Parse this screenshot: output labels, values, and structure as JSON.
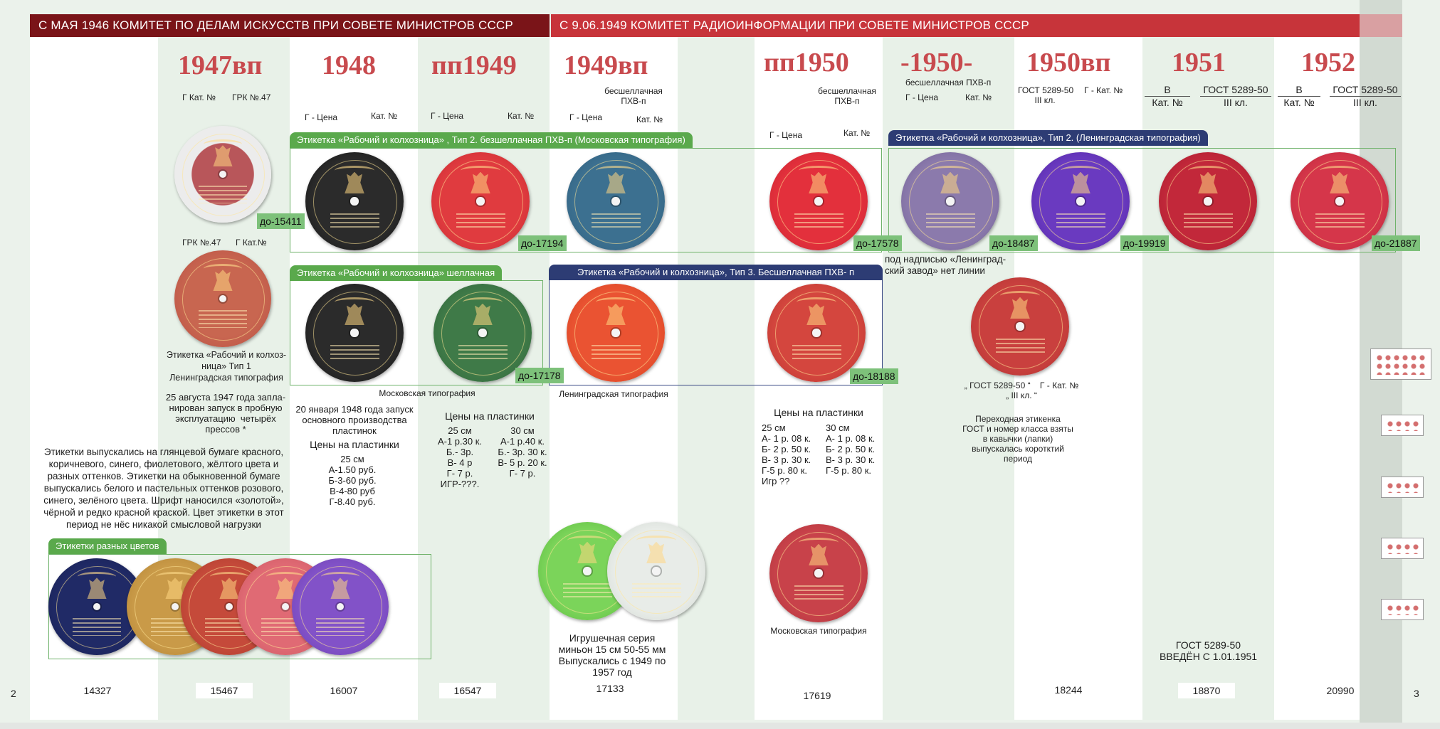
{
  "headers": {
    "left": "С МАЯ 1946 КОМИТЕТ ПО ДЕЛАМ ИСКУССТВ ПРИ СОВЕТЕ МИНИСТРОВ СССР",
    "right": "С 9.06.1949 КОМИТЕТ РАДИОИНФОРМАЦИИ ПРИ СОВЕТЕ МИНИСТРОВ СССР"
  },
  "page_numbers": {
    "left": "2",
    "right": "3"
  },
  "years": [
    "1947вп",
    "1948",
    "пп1949",
    "1949вп",
    "пп1950",
    "-1950-",
    "1950вп",
    "1951",
    "1952"
  ],
  "col_labels": {
    "c1947": [
      "Г Кат. №",
      "ГРК №.47"
    ],
    "c1948": [
      "Г - Цена",
      "Кат. №"
    ],
    "c1949pp": [
      "Г - Цена",
      "Кат. №"
    ],
    "c1949vp_note": "бесшеллачная\nПХВ-п",
    "c1949vp": [
      "Г - Цена",
      "Кат. №"
    ],
    "c1950pp_note": "бесшеллачная\nПХВ-п",
    "c1950pp": [
      "Г - Цена",
      "Кат. №"
    ],
    "c1950_note": "бесшеллачная ПХВ-п",
    "c1950": [
      "Г - Цена",
      "Кат. №"
    ],
    "c1950vp": [
      "ГОСТ 5289-50\nIII кл.",
      "Г - Кат. №"
    ],
    "c1951": [
      "В\nКат. №",
      "ГОСТ 5289-50\nIII кл."
    ],
    "c1952": [
      "В\nКат. №",
      "ГОСТ 5289-50\nIII кл."
    ],
    "c1947_row2": [
      "ГРК №.47",
      "Г Кат.№"
    ]
  },
  "tabs": {
    "type2_moscow": "Этикетка  «Рабочий и колхозница» , Тип 2. безшеллачная ПХВ-п  (Московская типография)",
    "type2_leningrad": "Этикетка  «Рабочий и колхозница»,  Тип 2. (Ленинградская типография)",
    "shellac": "Этикетка  «Рабочий и колхозница»  шеллачная",
    "type3": "Этикетка  «Рабочий и колхозница», Тип 3.   Бесшеллачная ПХВ- п",
    "colors": "Этикетки разных цветов"
  },
  "badges": [
    "до-15411",
    "до-17194",
    "до-17578",
    "до-18487",
    "до-19919",
    "до-21887",
    "до-17178",
    "до-18188"
  ],
  "texts": {
    "type1_caption": "Этикетка «Рабочий и колхоз-\nница» Тип 1\nЛенинградская типография",
    "aug1947": "25 августа 1947 года запла-\nнирован запуск в пробную\nэксплуатацию  четырёх\nпрессов *",
    "paper_note": "Этикетки выпускались на глянцевой бумаге красного,\nкоричневого, синего, фиолетового, жёлтого цвета и\nразных оттенков. Этикетки на обыкновенной бумаге\nвыпускались белого и пастельных оттенков розового,\nсинего, зелёного цвета. Шрифт наносился «золотой»,\nчёрной и редко красной краской. Цвет этикетки в этот\nпериод не нёс никакой смысловой нагрузки",
    "jan1948": "20 января 1948 года запуск\nосновного производства\nпластинок",
    "prices1948_title": "Цены на пластинки",
    "prices1948": "25 см\nА-1.50 руб.\nБ-3-60 руб.\nВ-4-80 руб\nГ-8.40 руб.",
    "moscow_typo": "Московская типография",
    "leningrad_typo": "Ленинградская типография",
    "prices1949_title": "Цены на пластинки",
    "prices1949_a": "25 см\nА-1 р.30 к.\nБ.- 3р.\nВ- 4 р\nГ- 7 р.\nИГР-???.",
    "prices1949_b": "30 см\nА-1 р.40 к.\nБ.- 3р. 30 к.\nВ- 5 р. 20 к.\nГ- 7 р.",
    "prices1950_title": "Цены на пластинки",
    "prices1950_a": "25 см\nА- 1 р. 08 к.\nБ- 2 р. 50 к.\nВ- 3 р. 30 к.\nГ-5 р. 80 к.\nИгр ??",
    "prices1950_b": "30 см\nА- 1 р. 08 к.\nБ- 2 р. 50 к.\nВ- 3 р. 30 к.\nГ-5 р. 80 к.",
    "moscow_typo2": "Московская типография",
    "toy_series": "Игрушечная серия\nминьон 15 см 50-55 мм\nВыпускались с 1949 по\n1957 год",
    "no_line": "под надписью «Ленинград-\nский завод» нет линии",
    "gost_quote": "„ ГОСТ 5289-50 “    Г - Кат. №\n„ III кл. “",
    "transition": "Переходная этикенка\nГОСТ и номер класса взяты\nв кавычки (лапки)\nвыпускалась коротктий\nпериод",
    "gost_intro": "ГОСТ 5289-50\nВВЕДЁН С 1.01.1951"
  },
  "bottom_numbers": [
    "14327",
    "15467",
    "16007",
    "16547",
    "17133",
    "17619",
    "18244",
    "18870",
    "20990"
  ],
  "colors": {
    "header_left": "#7a1418",
    "header_right": "#c7343a",
    "year": "#c84a4e",
    "tab_green": "#5aa94c",
    "tab_navy": "#2d3c74",
    "badge": "#7dc17a"
  }
}
